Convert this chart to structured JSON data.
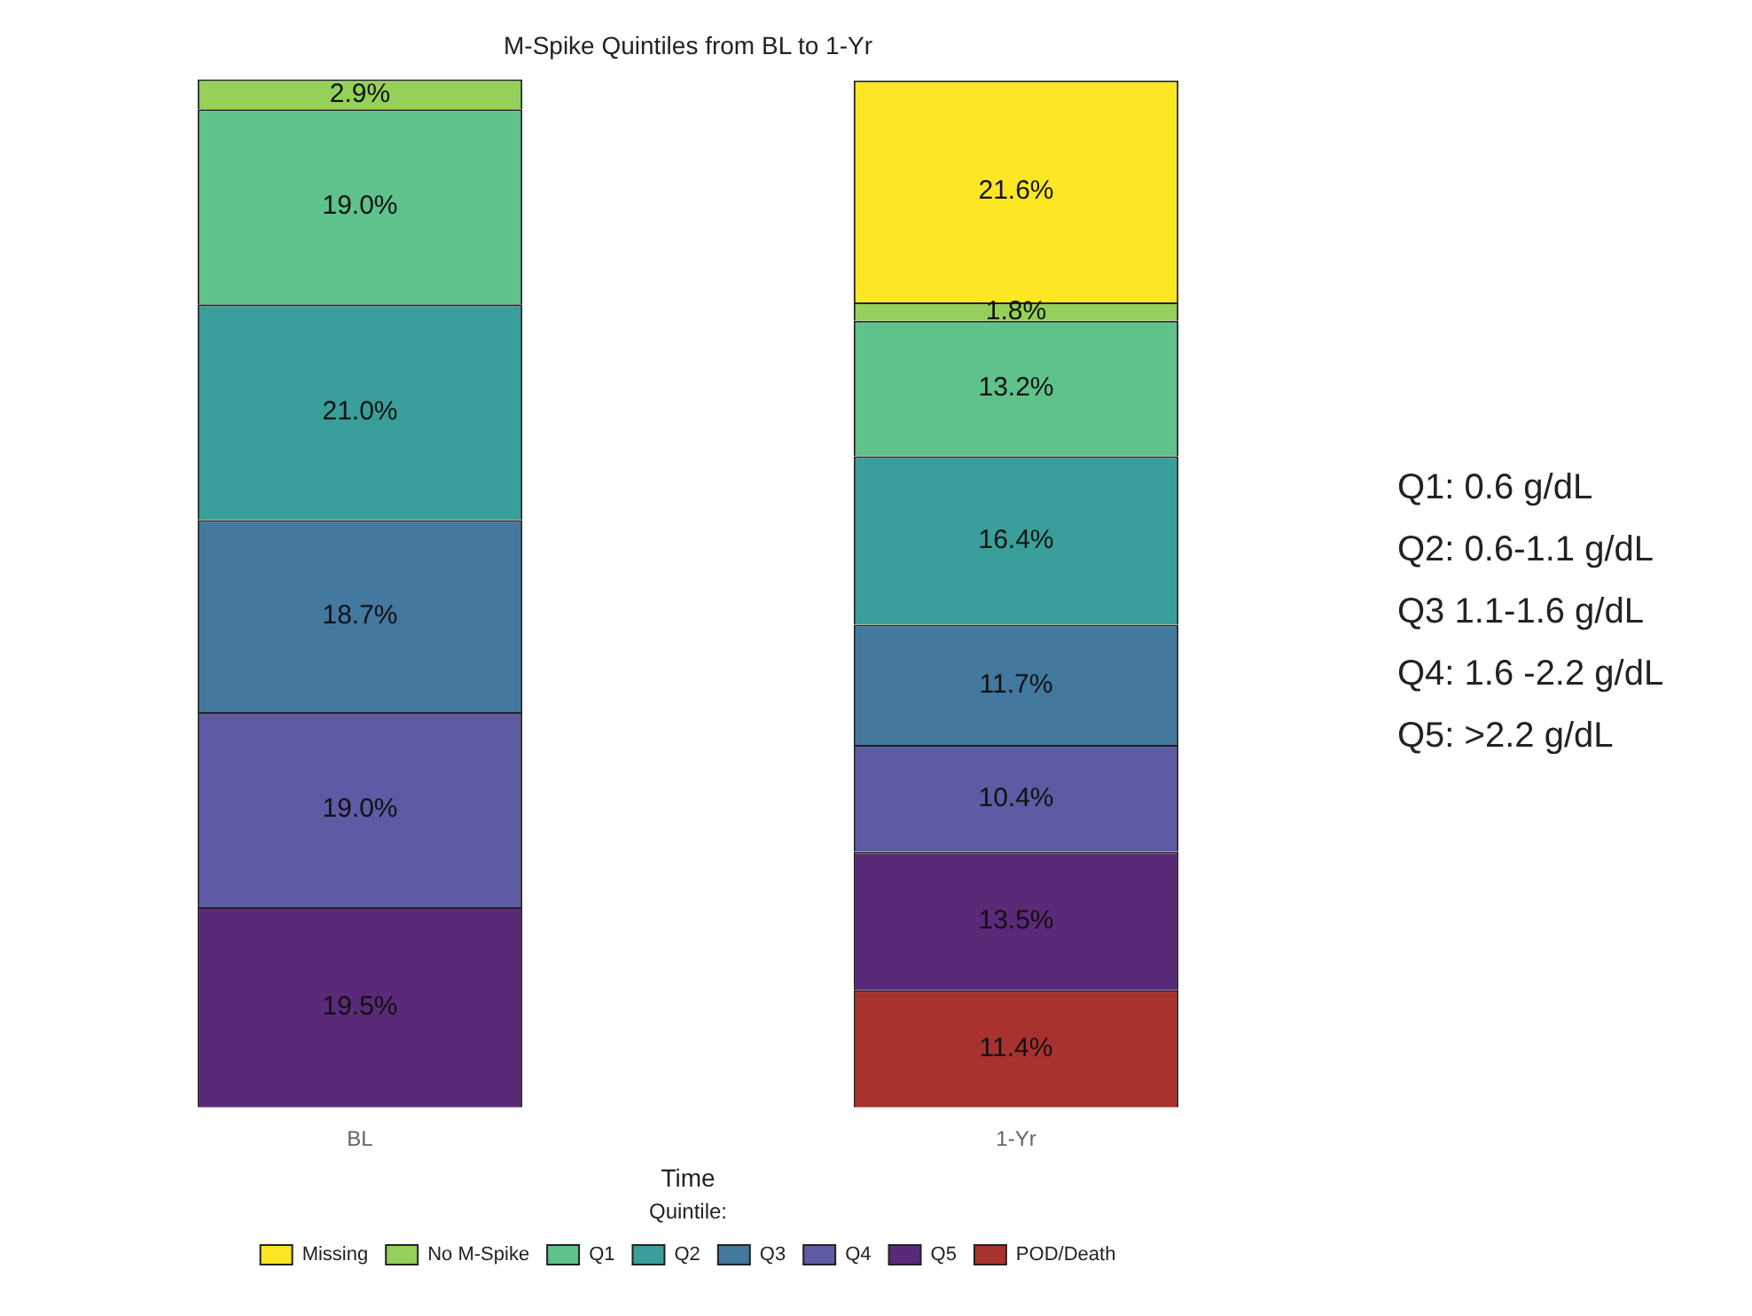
{
  "chart_data": {
    "type": "bar",
    "title": "M-Spike Quintiles from BL to 1-Yr",
    "xlabel": "Time",
    "legend_title": "Quintile:",
    "categories": [
      "BL",
      "1-Yr"
    ],
    "stacked": true,
    "legend": "bottom",
    "tick_labels": "x",
    "series": [
      {
        "name": "POD/Death",
        "color": "#a8322d",
        "values": [
          null,
          11.4
        ],
        "value_labels": [
          null,
          "11.4%"
        ]
      },
      {
        "name": "Q5",
        "color": "#5a2a78",
        "values": [
          19.5,
          13.5
        ],
        "value_labels": [
          "19.5%",
          "13.5%"
        ]
      },
      {
        "name": "Q4",
        "color": "#5d5ba3",
        "values": [
          19.0,
          10.4
        ],
        "value_labels": [
          "19.0%",
          "10.4%"
        ]
      },
      {
        "name": "Q3",
        "color": "#43789f",
        "values": [
          18.7,
          11.7
        ],
        "value_labels": [
          "18.7%",
          "11.7%"
        ]
      },
      {
        "name": "Q2",
        "color": "#3a9f9a",
        "values": [
          21.0,
          16.4
        ],
        "value_labels": [
          "21.0%",
          "16.4%"
        ]
      },
      {
        "name": "Q1",
        "color": "#5ec28a",
        "values": [
          19.0,
          13.2
        ],
        "value_labels": [
          "19.0%",
          "13.2%"
        ]
      },
      {
        "name": "No M-Spike",
        "color": "#95d05a",
        "values": [
          2.9,
          1.8
        ],
        "value_labels": [
          "2.9%",
          "1.8%"
        ]
      },
      {
        "name": "Missing",
        "color": "#fde725",
        "values": [
          null,
          21.6
        ],
        "value_labels": [
          null,
          "21.6%"
        ]
      }
    ],
    "annotations": [
      "Q1: 0.6 g/dL",
      "Q2: 0.6-1.1 g/dL",
      "Q3 1.1-1.6 g/dL",
      "Q4: 1.6 -2.2 g/dL",
      "Q5: >2.2 g/dL"
    ]
  }
}
